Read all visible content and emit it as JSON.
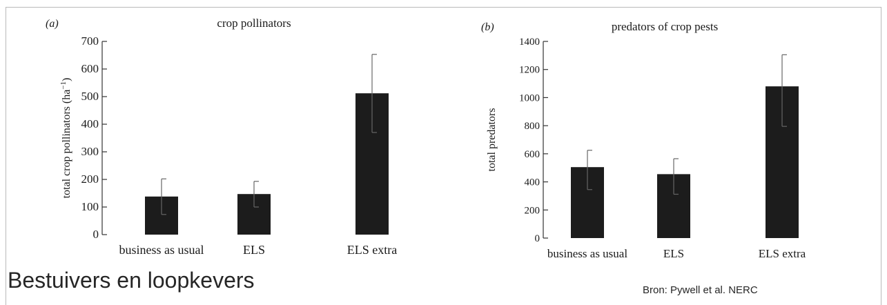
{
  "slide": {
    "title": "Bestuivers en loopkevers",
    "source": "Bron: Pywell et al. NERC"
  },
  "chart_data": [
    {
      "type": "bar",
      "panel_label": "(a)",
      "title": "crop pollinators",
      "xlabel": "",
      "ylabel": "total crop pollinators (ha",
      "ylabel_sup": "−1",
      "ylabel_end": ")",
      "categories": [
        "business as usual",
        "ELS",
        "ELS extra"
      ],
      "values": [
        138,
        147,
        512
      ],
      "error_low": [
        73,
        100,
        370
      ],
      "error_high": [
        202,
        193,
        653
      ],
      "ylim": [
        0,
        700
      ],
      "yticks": [
        0,
        100,
        200,
        300,
        400,
        500,
        600,
        700
      ],
      "grid": false,
      "bar_color": "#1c1c1c"
    },
    {
      "type": "bar",
      "panel_label": "(b)",
      "title": "predators of crop pests",
      "xlabel": "",
      "ylabel": "total predators",
      "categories": [
        "business as usual",
        "ELS",
        "ELS extra"
      ],
      "values": [
        505,
        455,
        1080
      ],
      "error_low": [
        345,
        312,
        795
      ],
      "error_high": [
        625,
        565,
        1305
      ],
      "ylim": [
        0,
        1400
      ],
      "yticks": [
        0,
        200,
        400,
        600,
        800,
        1000,
        1200,
        1400
      ],
      "grid": false,
      "bar_color": "#1c1c1c"
    }
  ]
}
